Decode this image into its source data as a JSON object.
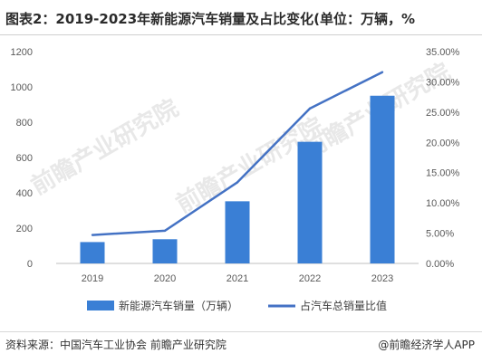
{
  "header": {
    "title": "图表2：2019-2023年新能源汽车销量及占比变化(单位：万辆，%"
  },
  "footer": {
    "source": "资料来源：中国汽车工业协会 前瞻产业研究院",
    "brand": "@前瞻经济学人APP"
  },
  "watermark": {
    "text": "前瞻产业研究院"
  },
  "colors": {
    "bar": "#3a7fd5",
    "line": "#4472c4",
    "axis": "#bfbfbf"
  },
  "chart_data": {
    "type": "bar",
    "categories": [
      "2019",
      "2020",
      "2021",
      "2022",
      "2023"
    ],
    "series": [
      {
        "name": "新能源汽车销量（万辆）",
        "type": "bar",
        "axis": "left",
        "values": [
          121,
          137,
          352,
          689,
          950
        ]
      },
      {
        "name": "占汽车总销量比值",
        "type": "line",
        "axis": "right",
        "values": [
          4.7,
          5.4,
          13.4,
          25.6,
          31.6
        ]
      }
    ],
    "y_left": {
      "min": 0,
      "max": 1200,
      "ticks": [
        "0",
        "200",
        "400",
        "600",
        "800",
        "1000",
        "1200"
      ]
    },
    "y_right": {
      "min": 0,
      "max": 35,
      "ticks": [
        "0.00%",
        "5.00%",
        "10.00%",
        "15.00%",
        "20.00%",
        "25.00%",
        "30.00%",
        "35.00%"
      ]
    },
    "legend_position": "bottom",
    "grid": false
  }
}
